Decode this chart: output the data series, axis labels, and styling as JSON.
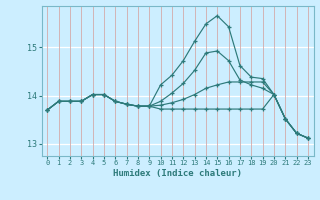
{
  "xlabel": "Humidex (Indice chaleur)",
  "bg_color": "#cceeff",
  "line_color": "#2d7a7a",
  "xlim": [
    -0.5,
    23.5
  ],
  "ylim": [
    12.75,
    15.85
  ],
  "yticks": [
    13,
    14,
    15
  ],
  "xticks": [
    0,
    1,
    2,
    3,
    4,
    5,
    6,
    7,
    8,
    9,
    10,
    11,
    12,
    13,
    14,
    15,
    16,
    17,
    18,
    19,
    20,
    21,
    22,
    23
  ],
  "curve1_x": [
    0,
    1,
    2,
    3,
    4,
    5,
    6,
    7,
    8,
    9,
    10,
    11,
    12,
    13,
    14,
    15,
    16,
    17,
    18,
    19,
    20,
    21,
    22,
    23
  ],
  "curve1_y": [
    13.7,
    13.88,
    13.88,
    13.88,
    14.02,
    14.02,
    13.88,
    13.82,
    13.78,
    13.78,
    14.22,
    14.42,
    14.72,
    15.12,
    15.48,
    15.65,
    15.42,
    14.62,
    14.38,
    14.35,
    14.02,
    13.52,
    13.22,
    13.12
  ],
  "curve2_x": [
    0,
    1,
    2,
    3,
    4,
    5,
    6,
    7,
    8,
    9,
    10,
    11,
    12,
    13,
    14,
    15,
    16,
    17,
    18,
    19,
    20,
    21,
    22,
    23
  ],
  "curve2_y": [
    13.7,
    13.88,
    13.88,
    13.88,
    14.02,
    14.02,
    13.88,
    13.82,
    13.78,
    13.78,
    13.88,
    14.05,
    14.25,
    14.52,
    14.88,
    14.92,
    14.72,
    14.32,
    14.22,
    14.15,
    14.02,
    13.52,
    13.22,
    13.12
  ],
  "curve3_x": [
    0,
    1,
    2,
    3,
    4,
    5,
    6,
    7,
    8,
    9,
    10,
    11,
    12,
    13,
    14,
    15,
    16,
    17,
    18,
    19,
    20,
    21,
    22,
    23
  ],
  "curve3_y": [
    13.7,
    13.88,
    13.88,
    13.88,
    14.02,
    14.02,
    13.88,
    13.82,
    13.78,
    13.78,
    13.8,
    13.85,
    13.92,
    14.02,
    14.15,
    14.22,
    14.28,
    14.28,
    14.28,
    14.28,
    14.02,
    13.52,
    13.22,
    13.12
  ],
  "curve4_x": [
    0,
    1,
    2,
    3,
    4,
    5,
    6,
    7,
    8,
    9,
    10,
    11,
    12,
    13,
    14,
    15,
    16,
    17,
    18,
    19,
    20,
    21,
    22,
    23
  ],
  "curve4_y": [
    13.7,
    13.88,
    13.88,
    13.88,
    14.02,
    14.02,
    13.88,
    13.82,
    13.78,
    13.78,
    13.72,
    13.72,
    13.72,
    13.72,
    13.72,
    13.72,
    13.72,
    13.72,
    13.72,
    13.72,
    14.02,
    13.52,
    13.22,
    13.12
  ]
}
